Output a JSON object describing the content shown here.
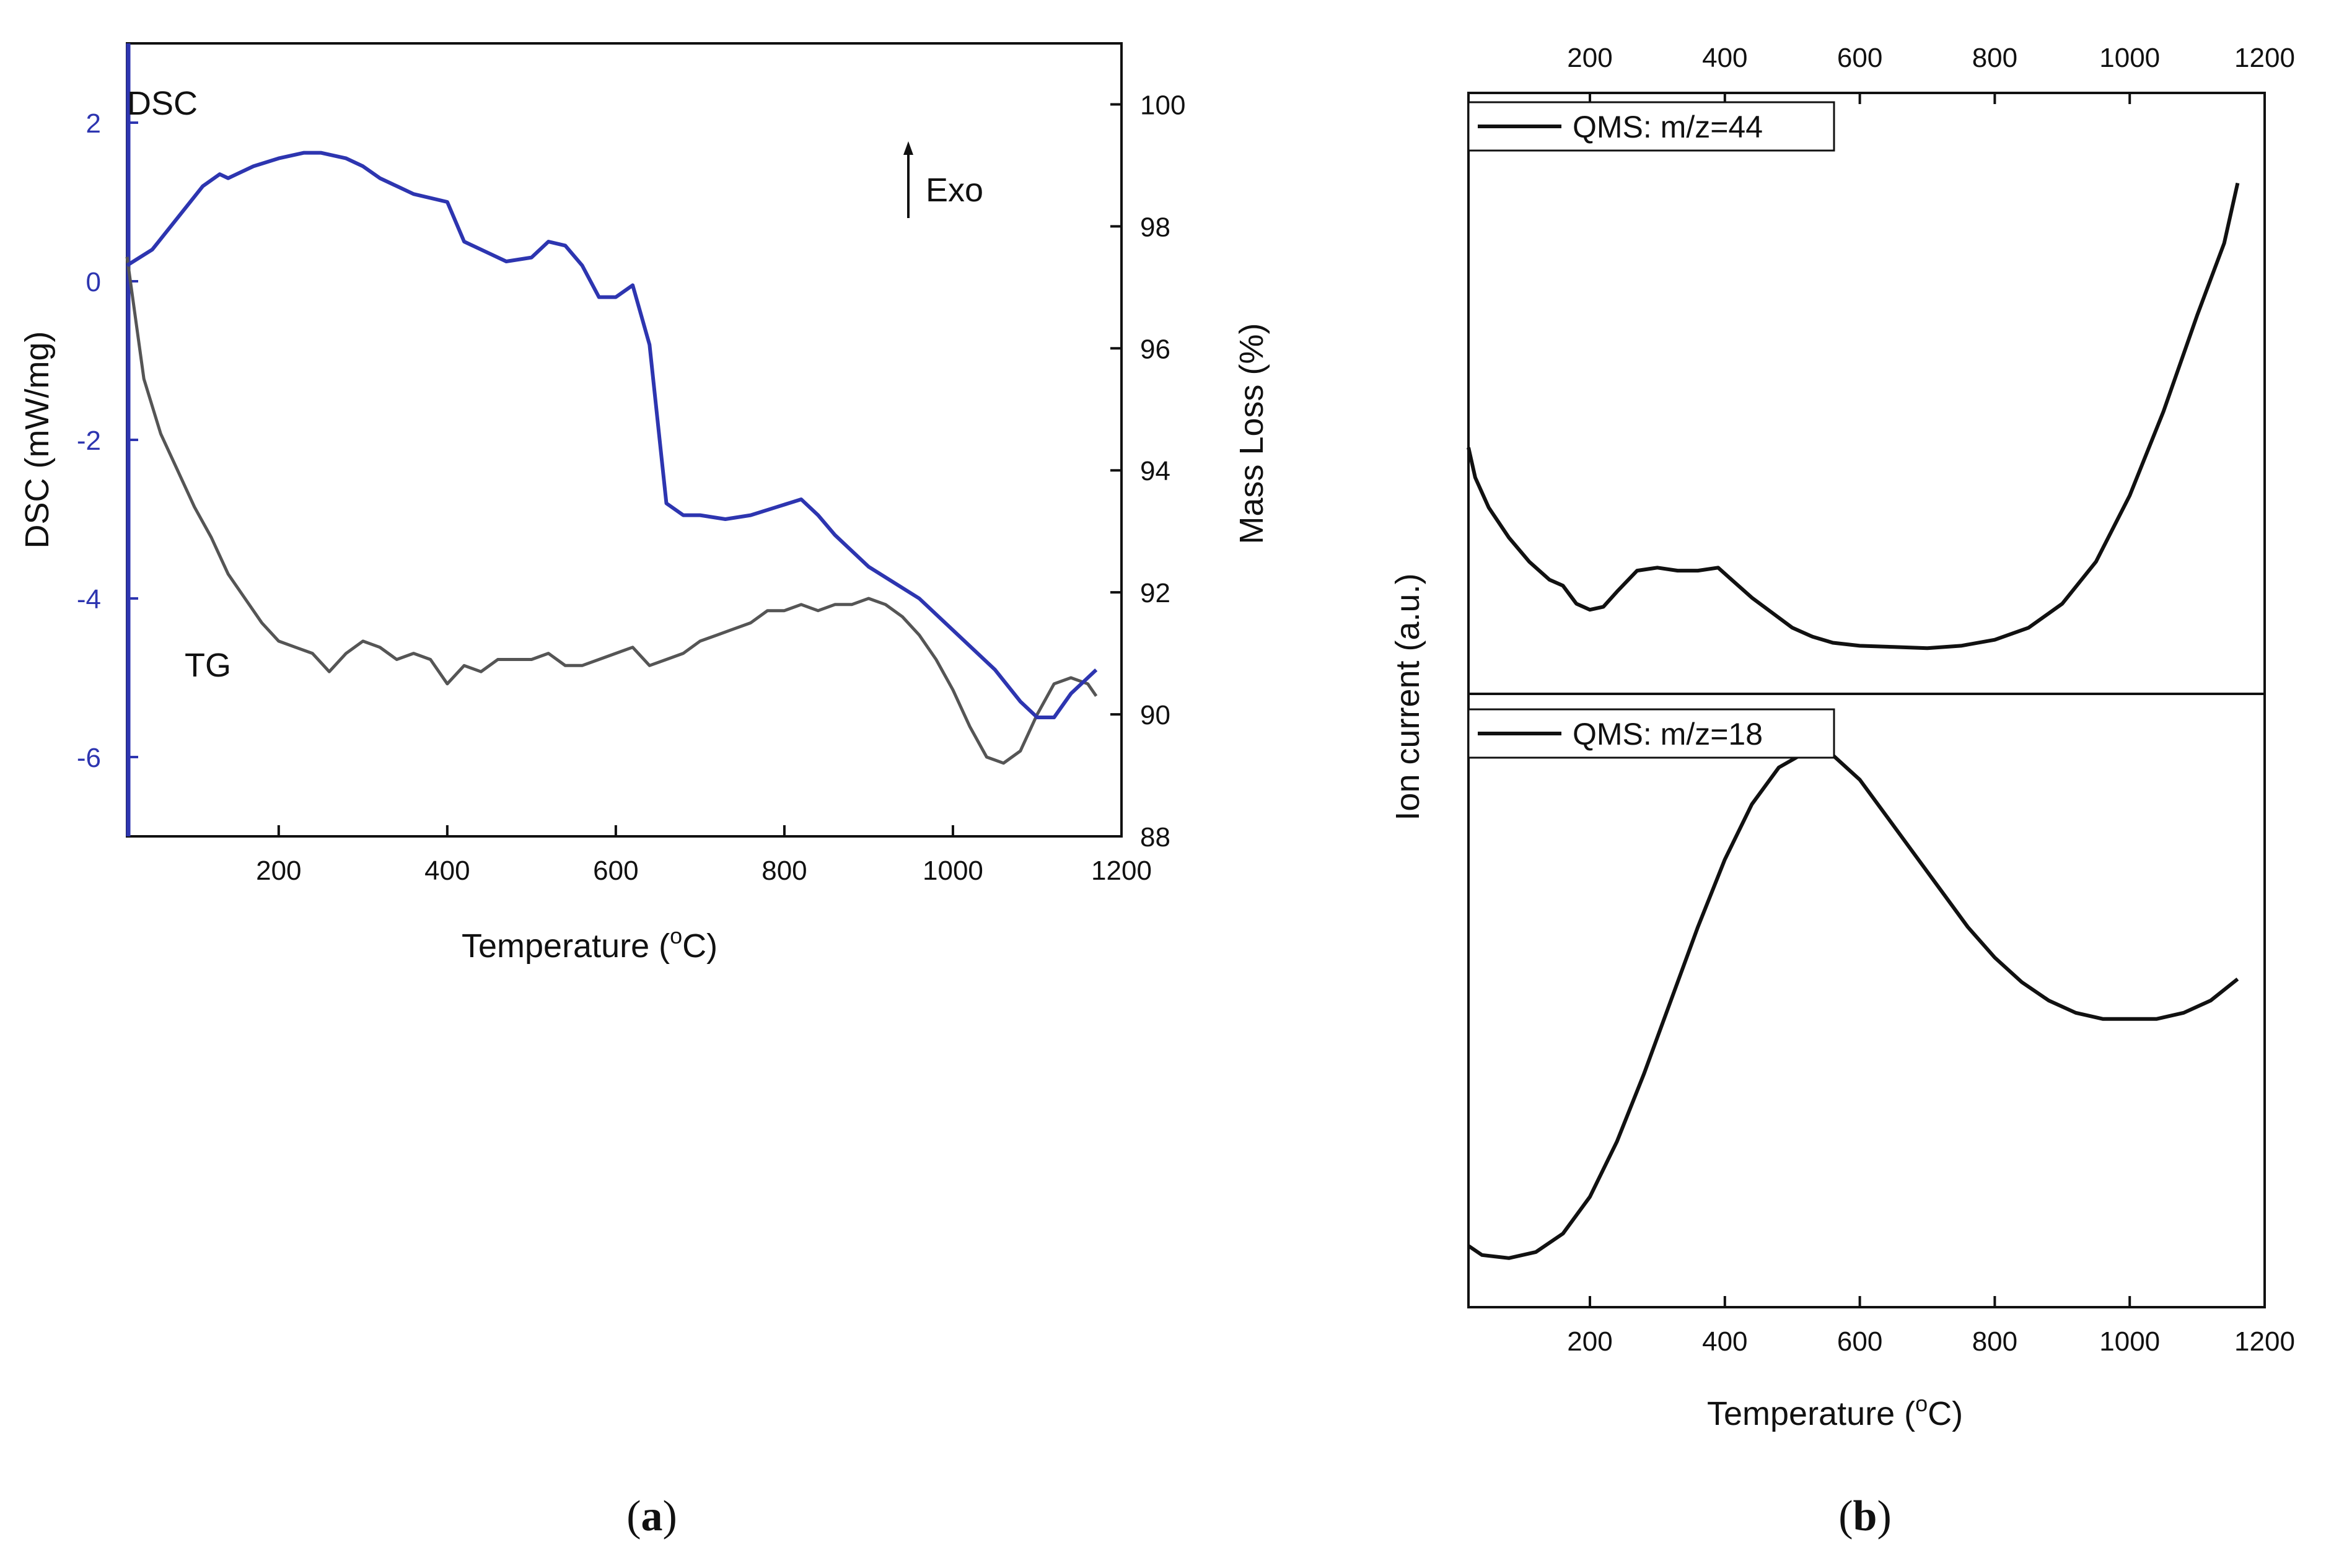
{
  "captions": {
    "a": "a",
    "b": "b"
  },
  "chart_data": [
    {
      "type": "line",
      "panel": "a",
      "xlabel": "Temperature (oC)",
      "xlabel_main": "Temperature (",
      "xlabel_sup": "o",
      "xlabel_end": "C)",
      "xlim": [
        20,
        1200
      ],
      "xticks": [
        200,
        400,
        600,
        800,
        1000,
        1200
      ],
      "ylabel_left": "DSC (mW/mg)",
      "ylim_left": [
        -7,
        3
      ],
      "yticks_left": [
        2,
        0,
        -2,
        -4,
        -6
      ],
      "ylabel_right": "Mass Loss (%)",
      "ylim_right": [
        88,
        101
      ],
      "yticks_right": [
        100,
        98,
        96,
        94,
        92,
        90,
        88
      ],
      "annotations": {
        "dsc": "DSC",
        "tg": "TG",
        "exo": "Exo"
      },
      "colors": {
        "dsc": "#2d35b0",
        "tg": "#555555",
        "axis_left": "#2d35b0"
      },
      "series": [
        {
          "name": "DSC",
          "axis": "left",
          "x": [
            20,
            50,
            80,
            110,
            130,
            140,
            150,
            170,
            200,
            230,
            250,
            280,
            300,
            320,
            340,
            360,
            400,
            420,
            450,
            470,
            500,
            520,
            540,
            560,
            580,
            600,
            620,
            640,
            660,
            680,
            700,
            730,
            760,
            790,
            820,
            840,
            860,
            880,
            900,
            930,
            960,
            990,
            1020,
            1050,
            1080,
            1100,
            1120,
            1140,
            1160,
            1170
          ],
          "values": [
            0.2,
            0.4,
            0.8,
            1.2,
            1.35,
            1.3,
            1.35,
            1.45,
            1.55,
            1.62,
            1.62,
            1.55,
            1.45,
            1.3,
            1.2,
            1.1,
            1.0,
            0.5,
            0.35,
            0.25,
            0.3,
            0.5,
            0.45,
            0.2,
            -0.2,
            -0.2,
            -0.05,
            -0.8,
            -2.8,
            -2.95,
            -2.95,
            -3.0,
            -2.95,
            -2.85,
            -2.75,
            -2.95,
            -3.2,
            -3.4,
            -3.6,
            -3.8,
            -4.0,
            -4.3,
            -4.6,
            -4.9,
            -5.3,
            -5.5,
            -5.5,
            -5.2,
            -5.0,
            -4.9
          ]
        },
        {
          "name": "TG",
          "axis": "right",
          "x": [
            20,
            40,
            60,
            80,
            100,
            120,
            140,
            160,
            180,
            200,
            220,
            240,
            260,
            280,
            300,
            320,
            340,
            360,
            380,
            400,
            420,
            440,
            460,
            480,
            500,
            520,
            540,
            560,
            580,
            600,
            620,
            640,
            660,
            680,
            700,
            720,
            740,
            760,
            780,
            800,
            820,
            840,
            860,
            880,
            900,
            920,
            940,
            960,
            980,
            1000,
            1020,
            1040,
            1060,
            1080,
            1100,
            1120,
            1140,
            1160,
            1170
          ],
          "values": [
            97.5,
            95.5,
            94.6,
            94.0,
            93.4,
            92.9,
            92.3,
            91.9,
            91.5,
            91.2,
            91.1,
            91.0,
            90.7,
            91.0,
            91.2,
            91.1,
            90.9,
            91.0,
            90.9,
            90.5,
            90.8,
            90.7,
            90.9,
            90.9,
            90.9,
            91.0,
            90.8,
            90.8,
            90.9,
            91.0,
            91.1,
            90.8,
            90.9,
            91.0,
            91.2,
            91.3,
            91.4,
            91.5,
            91.7,
            91.7,
            91.8,
            91.7,
            91.8,
            91.8,
            91.9,
            91.8,
            91.6,
            91.3,
            90.9,
            90.4,
            89.8,
            89.3,
            89.2,
            89.4,
            90.0,
            90.5,
            90.6,
            90.5,
            90.3
          ]
        }
      ]
    },
    {
      "type": "line",
      "panel": "b",
      "xlabel": "Temperature (oC)",
      "xlabel_main": "Temperature (",
      "xlabel_sup": "o",
      "xlabel_end": "C)",
      "xlim": [
        20,
        1200
      ],
      "xticks": [
        200,
        400,
        600,
        800,
        1000,
        1200
      ],
      "ylabel": "Ion current (a.u.)",
      "colors": {
        "line": "#111111"
      },
      "subplots": [
        {
          "name": "QMS: m/z=44",
          "legend": "QMS: m/z=44",
          "ylim": [
            0,
            1
          ],
          "x": [
            20,
            30,
            50,
            80,
            110,
            140,
            160,
            180,
            200,
            220,
            240,
            270,
            300,
            330,
            360,
            390,
            410,
            440,
            470,
            500,
            530,
            560,
            600,
            650,
            700,
            750,
            800,
            850,
            900,
            950,
            1000,
            1050,
            1100,
            1140,
            1160
          ],
          "values": [
            0.41,
            0.36,
            0.31,
            0.26,
            0.22,
            0.19,
            0.18,
            0.15,
            0.14,
            0.145,
            0.17,
            0.205,
            0.21,
            0.205,
            0.205,
            0.21,
            0.19,
            0.16,
            0.135,
            0.11,
            0.095,
            0.085,
            0.08,
            0.078,
            0.076,
            0.08,
            0.09,
            0.11,
            0.15,
            0.22,
            0.33,
            0.47,
            0.63,
            0.75,
            0.85
          ]
        },
        {
          "name": "QMS: m/z=18",
          "legend": "QMS: m/z=18",
          "ylim": [
            0,
            1
          ],
          "x": [
            20,
            40,
            80,
            120,
            160,
            200,
            240,
            280,
            320,
            360,
            400,
            440,
            480,
            520,
            540,
            560,
            600,
            640,
            680,
            720,
            760,
            800,
            840,
            880,
            920,
            960,
            1000,
            1040,
            1080,
            1120,
            1160
          ],
          "values": [
            0.1,
            0.085,
            0.08,
            0.09,
            0.12,
            0.18,
            0.27,
            0.38,
            0.5,
            0.62,
            0.73,
            0.82,
            0.88,
            0.905,
            0.91,
            0.9,
            0.86,
            0.8,
            0.74,
            0.68,
            0.62,
            0.57,
            0.53,
            0.5,
            0.48,
            0.47,
            0.47,
            0.47,
            0.48,
            0.5,
            0.535
          ]
        }
      ]
    }
  ]
}
